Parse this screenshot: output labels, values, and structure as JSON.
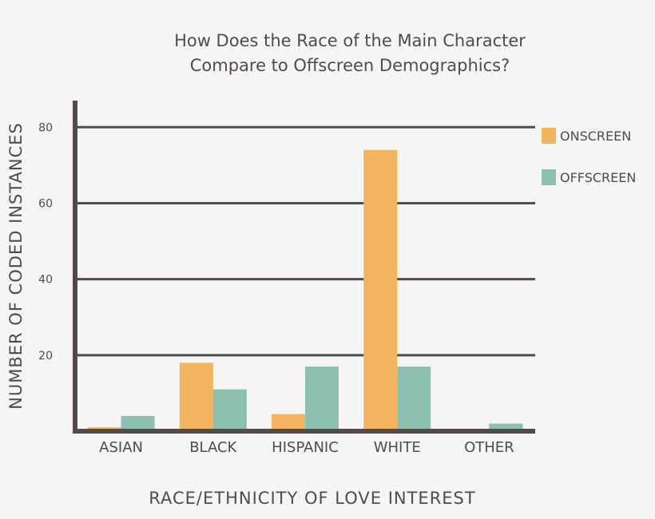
{
  "chart_data": {
    "type": "bar",
    "title_lines": [
      "How Does the Race of the Main Character",
      "Compare to Offscreen Demographics?"
    ],
    "xlabel": "RACE/ETHNICITY OF LOVE INTEREST",
    "ylabel": "NUMBER OF CODED INSTANCES",
    "categories": [
      "ASIAN",
      "BLACK",
      "HISPANIC",
      "WHITE",
      "OTHER"
    ],
    "series": [
      {
        "name": "ONSCREEN",
        "color": "#f2b45e",
        "values": [
          1,
          18,
          4.5,
          74,
          0.5
        ]
      },
      {
        "name": "OFFSCREEN",
        "color": "#8ec0b1",
        "values": [
          4,
          11,
          17,
          17,
          2
        ]
      }
    ],
    "yticks": [
      20,
      40,
      60,
      80
    ],
    "ylim": [
      0,
      87
    ],
    "grid": true,
    "legend": "right",
    "axis_color": "#54494b"
  }
}
